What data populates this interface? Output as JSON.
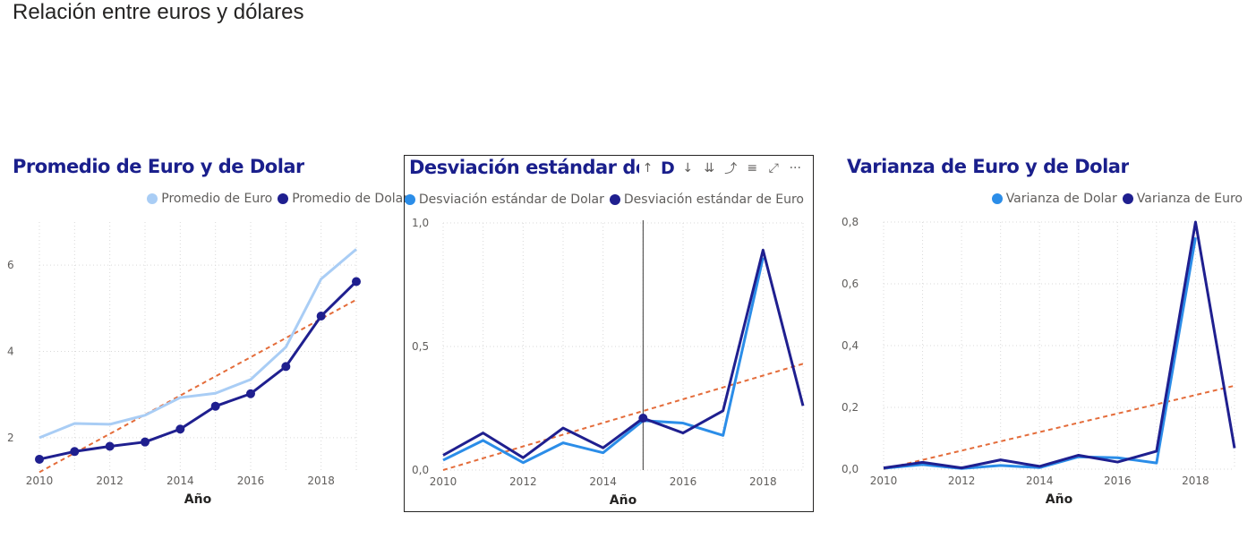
{
  "page": {
    "title": "Relación entre euros y dólares"
  },
  "header_icons": [
    {
      "name": "sort-up-icon",
      "glyph": "↑"
    },
    {
      "name": "sort-down-icon",
      "glyph": "↓"
    },
    {
      "name": "expand-all-icon",
      "glyph": "⇊"
    },
    {
      "name": "drill-up-icon",
      "glyph": "⤴"
    },
    {
      "name": "filter-icon",
      "glyph": "≡"
    },
    {
      "name": "focus-mode-icon",
      "glyph": "⤢"
    },
    {
      "name": "more-options-icon",
      "glyph": "···"
    }
  ],
  "colors": {
    "light_blue": "#a9cdf5",
    "mid_blue": "#2b8de8",
    "dark_blue": "#1f1f8f",
    "trend": "#e46c3a",
    "title": "#1a1f8c"
  },
  "chart_data": [
    {
      "type": "line",
      "title": "Promedio de Euro y de Dolar",
      "xlabel": "Año",
      "ylabel": "",
      "x": [
        2010,
        2011,
        2012,
        2013,
        2014,
        2015,
        2016,
        2017,
        2018,
        2019
      ],
      "xticks": [
        "2010",
        "2012",
        "2014",
        "2016",
        "2018"
      ],
      "yticks": [
        "2",
        "4",
        "6"
      ],
      "ytick_values": [
        2,
        4,
        6
      ],
      "ylim": [
        1.25,
        7.0
      ],
      "xlim": [
        2010,
        2019
      ],
      "grid": true,
      "legend": "top-right",
      "series": [
        {
          "name": "Promedio de Euro",
          "color": "#a9cdf5",
          "values": [
            2.0,
            2.33,
            2.31,
            2.52,
            2.93,
            3.03,
            3.35,
            4.1,
            5.68,
            6.37
          ],
          "markers": false
        },
        {
          "name": "Promedio de Dolar",
          "color": "#1f1f8f",
          "values": [
            1.5,
            1.68,
            1.8,
            1.9,
            2.2,
            2.73,
            3.02,
            3.65,
            4.82,
            5.62
          ],
          "markers": true
        }
      ],
      "trendline": [
        1.2,
        5.2
      ]
    },
    {
      "type": "line",
      "title": "Desviación estándar de",
      "title_fragment": "D",
      "xlabel": "Año",
      "ylabel": "",
      "x": [
        2010,
        2011,
        2012,
        2013,
        2014,
        2015,
        2016,
        2017,
        2018,
        2019
      ],
      "xticks": [
        "2010",
        "2012",
        "2014",
        "2016",
        "2018"
      ],
      "yticks": [
        "0,0",
        "0,5",
        "1,0"
      ],
      "ytick_values": [
        0,
        0.5,
        1.0
      ],
      "ylim": [
        0,
        1.0
      ],
      "xlim": [
        2010,
        2019
      ],
      "grid": true,
      "legend": "top-right",
      "series": [
        {
          "name": "Desviación estándar de Dolar",
          "color": "#2b8de8",
          "values": [
            0.04,
            0.12,
            0.03,
            0.11,
            0.07,
            0.2,
            0.19,
            0.14,
            0.86,
            null
          ],
          "markers": false
        },
        {
          "name": "Desviación estándar de Euro",
          "color": "#1f1f8f",
          "values": [
            0.06,
            0.15,
            0.05,
            0.17,
            0.09,
            0.21,
            0.15,
            0.24,
            0.89,
            0.26
          ],
          "markers": false
        }
      ],
      "highlight_x": 2015,
      "trendline": [
        0.0,
        0.43
      ]
    },
    {
      "type": "line",
      "title": "Varianza de Euro y de Dolar",
      "xlabel": "Año",
      "ylabel": "",
      "x": [
        2010,
        2011,
        2012,
        2013,
        2014,
        2015,
        2016,
        2017,
        2018,
        2019
      ],
      "xticks": [
        "2010",
        "2012",
        "2014",
        "2016",
        "2018"
      ],
      "yticks": [
        "0,0",
        "0,2",
        "0,4",
        "0,6",
        "0,8"
      ],
      "ytick_values": [
        0,
        0.2,
        0.4,
        0.6,
        0.8
      ],
      "ylim": [
        0,
        0.8
      ],
      "xlim": [
        2010,
        2019
      ],
      "grid": true,
      "legend": "top-right",
      "series": [
        {
          "name": "Varianza de Dolar",
          "color": "#2b8de8",
          "values": [
            0.003,
            0.015,
            0.002,
            0.012,
            0.005,
            0.04,
            0.037,
            0.02,
            0.75,
            null
          ],
          "markers": false
        },
        {
          "name": "Varianza de Euro",
          "color": "#1f1f8f",
          "values": [
            0.004,
            0.022,
            0.004,
            0.03,
            0.009,
            0.045,
            0.023,
            0.058,
            0.8,
            0.068
          ],
          "markers": false
        }
      ],
      "trendline": [
        0.0,
        0.27
      ]
    }
  ]
}
